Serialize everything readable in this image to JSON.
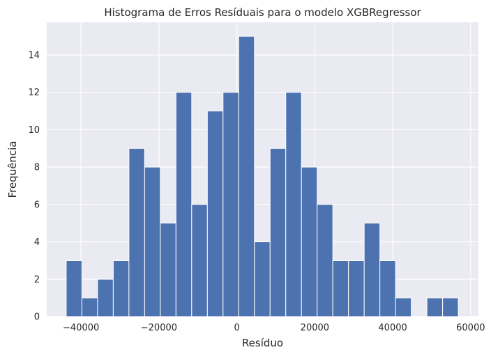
{
  "chart_data": {
    "type": "bar",
    "title": "Histograma de Erros Resíduais para o modelo XGBRegressor",
    "xlabel": "Resíduo",
    "ylabel": "Frequência",
    "bar_color": "#4c72b0",
    "background_color": "#eaeaf2",
    "grid": true,
    "bin_start": -43800,
    "bin_width": 4025,
    "values": [
      3,
      1,
      2,
      3,
      9,
      8,
      5,
      12,
      6,
      11,
      12,
      15,
      4,
      9,
      12,
      8,
      6,
      3,
      3,
      5,
      3,
      1,
      0,
      1,
      1
    ],
    "xlim": [
      -48800,
      62000
    ],
    "ylim": [
      0,
      15.75
    ],
    "xticks": [
      -40000,
      -20000,
      0,
      20000,
      40000,
      60000
    ],
    "xtick_labels": [
      "−40000",
      "−20000",
      "0",
      "20000",
      "40000",
      "60000"
    ],
    "yticks": [
      0,
      2,
      4,
      6,
      8,
      10,
      12,
      14
    ],
    "ytick_labels": [
      "0",
      "2",
      "4",
      "6",
      "8",
      "10",
      "12",
      "14"
    ]
  }
}
